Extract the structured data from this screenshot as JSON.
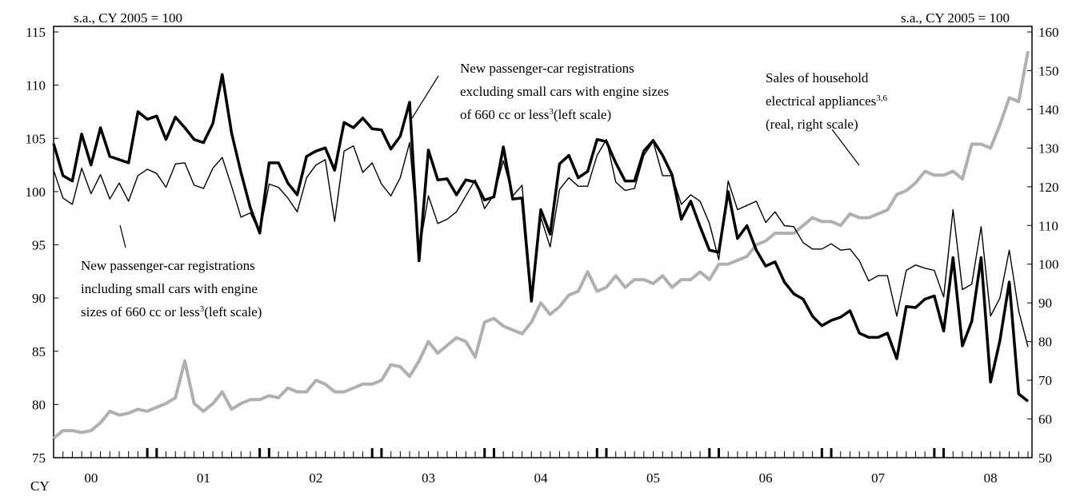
{
  "chart_data": {
    "type": "line",
    "left_unit": "s.a., CY 2005 = 100",
    "right_unit": "s.a., CY 2005 = 100",
    "x_prefix": "CY",
    "categories": [
      null,
      null,
      null,
      null,
      "00",
      null,
      null,
      null,
      null,
      null,
      null,
      null,
      null,
      null,
      null,
      null,
      "01",
      null,
      null,
      null,
      null,
      null,
      null,
      null,
      null,
      null,
      null,
      null,
      "02",
      null,
      null,
      null,
      null,
      null,
      null,
      null,
      null,
      null,
      null,
      null,
      "03",
      null,
      null,
      null,
      null,
      null,
      null,
      null,
      null,
      null,
      null,
      null,
      "04",
      null,
      null,
      null,
      null,
      null,
      null,
      null,
      null,
      null,
      null,
      null,
      "05",
      null,
      null,
      null,
      null,
      null,
      null,
      null,
      null,
      null,
      null,
      null,
      "06",
      null,
      null,
      null,
      null,
      null,
      null,
      null,
      null,
      null,
      null,
      null,
      "07",
      null,
      null,
      null,
      null,
      null,
      null,
      null,
      null,
      null,
      null,
      null,
      "08",
      null,
      null,
      null,
      null
    ],
    "ylim": [
      75,
      115
    ],
    "yticks": [
      75,
      80,
      85,
      90,
      95,
      100,
      105,
      110,
      115
    ],
    "y2lim": [
      50,
      160
    ],
    "y2ticks": [
      50,
      60,
      70,
      80,
      90,
      100,
      110,
      120,
      130,
      140,
      150,
      160
    ],
    "series": [
      {
        "color": "#000000",
        "width": 3.5,
        "axis": "y",
        "values": [
          104.5,
          101.5,
          101,
          105.4,
          102.5,
          106,
          103.3,
          103,
          102.7,
          107.5,
          106.8,
          107.1,
          104.9,
          107,
          106,
          104.9,
          104.6,
          106.4,
          111,
          105.5,
          101.8,
          98.5,
          96.1,
          102.7,
          102.7,
          100.8,
          99.7,
          103.3,
          103.8,
          104.1,
          102,
          106.5,
          106,
          106.9,
          105.9,
          105.8,
          104,
          105.2,
          108.4,
          93.5,
          103.9,
          101.1,
          101.2,
          99.7,
          101.1,
          100.9,
          99.2,
          99.5,
          104.2,
          99.3,
          99.4,
          89.7,
          98.3,
          96,
          102.6,
          103.4,
          101.3,
          101.9,
          104.9,
          104.7,
          102.7,
          101,
          101,
          103.8,
          104.8,
          103.4,
          101.6,
          97.4,
          99.1,
          96.7,
          94.5,
          94.3,
          100,
          95.6,
          96.8,
          94.5,
          93,
          93.4,
          91.5,
          90.4,
          89.9,
          88.3,
          87.4,
          87.9,
          88.2,
          88.8,
          86.7,
          86.3,
          86.3,
          86.7,
          84.3,
          89.2,
          89.1,
          89.9,
          90.2,
          86.9,
          93.8,
          85.5,
          87.8,
          93.8,
          82.1,
          86,
          91.5,
          81,
          80.3
        ]
      },
      {
        "color": "#000000",
        "width": 1.4,
        "axis": "y",
        "values": [
          102,
          99.4,
          98.8,
          102.2,
          99.8,
          101.6,
          99.3,
          100.8,
          99.1,
          101.5,
          102.1,
          101.7,
          100.4,
          102.6,
          102.7,
          100.6,
          100.3,
          102.2,
          103.2,
          100.5,
          97.6,
          98,
          96.1,
          100.7,
          100.4,
          99.4,
          98.1,
          101.3,
          102.5,
          103,
          97.2,
          103.8,
          104.3,
          101.8,
          102.7,
          100.7,
          99.6,
          101.3,
          104.6,
          94.4,
          99.6,
          97,
          97.4,
          98.1,
          99.6,
          101.1,
          98.4,
          99.7,
          102.9,
          99.6,
          100.6,
          90.3,
          97.6,
          94.8,
          100.2,
          101.3,
          100.5,
          100.5,
          103.4,
          104.9,
          100.9,
          100.1,
          100.3,
          103.4,
          104.7,
          101.5,
          101.5,
          98.8,
          99.7,
          99.1,
          97,
          93.6,
          101,
          98.3,
          98.7,
          99.1,
          97.1,
          98.1,
          96.8,
          96.7,
          95.2,
          94.6,
          94.6,
          95.1,
          94.5,
          94.6,
          93.5,
          91.6,
          92.1,
          92.1,
          88.3,
          92.6,
          93.1,
          92.8,
          92.6,
          90.1,
          98.3,
          90.8,
          91.3,
          96.7,
          88.3,
          90,
          94.5,
          88.8,
          85.4
        ]
      },
      {
        "color": "#b0b0b0",
        "width": 4,
        "axis": "y2",
        "values": [
          55,
          57,
          57,
          56.5,
          57,
          59,
          62,
          61,
          61.5,
          62.5,
          62,
          63,
          64,
          65.5,
          75,
          64,
          62,
          64,
          67,
          62.5,
          64,
          65,
          65,
          66,
          65.5,
          68,
          67,
          67,
          70,
          69,
          67,
          67,
          68,
          69,
          69,
          70,
          74,
          73.5,
          71,
          75,
          80,
          77,
          79,
          81,
          80,
          76,
          85,
          86,
          84,
          83,
          82,
          85,
          90,
          87,
          89,
          92,
          93,
          98,
          93,
          94,
          97,
          94,
          96,
          96,
          95,
          97,
          94,
          96,
          96,
          98,
          96,
          100,
          100,
          101,
          102,
          105,
          106,
          108,
          108,
          108,
          110,
          112,
          111,
          111,
          110,
          113,
          112,
          112,
          113,
          114,
          118,
          119,
          121,
          124,
          123,
          123,
          124,
          122,
          131,
          131,
          130,
          136,
          143,
          142,
          155
        ]
      }
    ],
    "annotations": [
      {
        "lines": [
          [
            {
              "text": "New passenger-car registrations"
            }
          ],
          [
            {
              "text": "excluding small cars with engine sizes"
            }
          ],
          [
            {
              "text": "of 660 cc or less"
            },
            {
              "sup": "3"
            },
            {
              "text": "(left scale)"
            }
          ]
        ]
      },
      {
        "lines": [
          [
            {
              "text": "New passenger-car registrations"
            }
          ],
          [
            {
              "text": "including small cars with engine"
            }
          ],
          [
            {
              "text": "sizes of 660 cc or less"
            },
            {
              "sup": "3"
            },
            {
              "text": "(left scale)"
            }
          ]
        ]
      },
      {
        "lines": [
          [
            {
              "text": "Sales of household"
            }
          ],
          [
            {
              "text": "electrical appliances"
            },
            {
              "sup": "3,6"
            }
          ],
          [
            {
              "text": " (real, right scale)"
            }
          ]
        ]
      }
    ]
  }
}
